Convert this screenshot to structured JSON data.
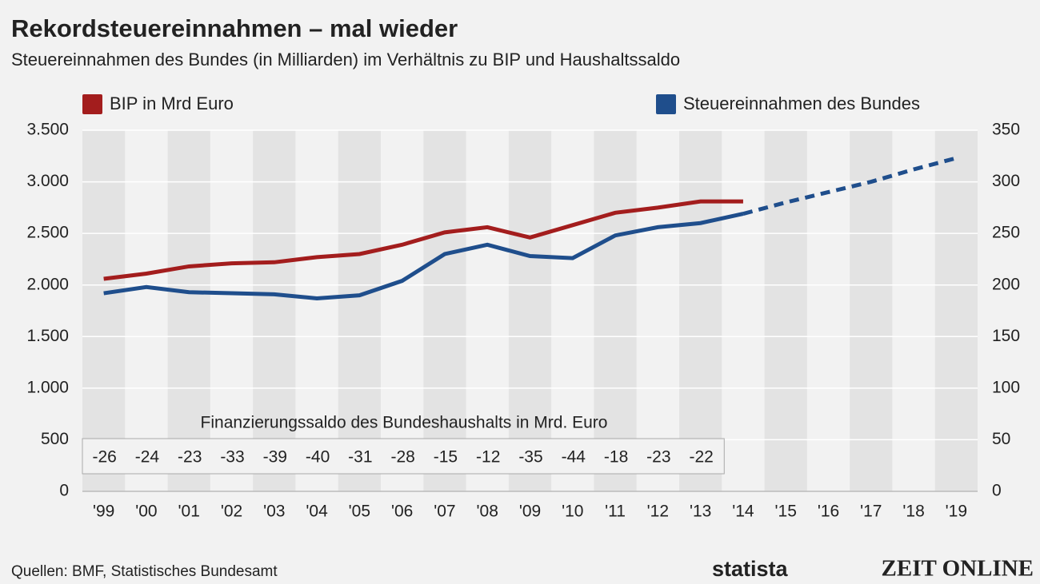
{
  "chart_data": {
    "type": "line",
    "title": "Rekordsteuereinnahmen – mal wieder",
    "subtitle": "Steuereinnahmen des Bundes (in Milliarden) im Verhältnis zu BIP und Haushaltssaldo",
    "categories": [
      "'99",
      "'00",
      "'01",
      "'02",
      "'03",
      "'04",
      "'05",
      "'06",
      "'07",
      "'08",
      "'09",
      "'10",
      "'11",
      "'12",
      "'13",
      "'14",
      "'15",
      "'16",
      "'17",
      "'18",
      "'19"
    ],
    "series": [
      {
        "name": "BIP in Mrd Euro",
        "color": "#a31d1d",
        "values": [
          2060,
          2110,
          2180,
          2210,
          2220,
          2270,
          2300,
          2390,
          2510,
          2560,
          2460,
          2580,
          2700,
          2750,
          2810,
          2810,
          null,
          null,
          null,
          null,
          null
        ]
      },
      {
        "name": "Steuereinnahmen des Bundes",
        "color": "#1f4e8c",
        "axis": "y2",
        "values": [
          192,
          198,
          193,
          192,
          191,
          187,
          190,
          204,
          230,
          239,
          228,
          226,
          248,
          256,
          260,
          269,
          280,
          290,
          300,
          312,
          323
        ]
      }
    ],
    "forecast_from": "'14",
    "ylim": [
      0,
      3500
    ],
    "yticks": [
      0,
      500,
      {
        "value": 1000,
        "label": "1.000"
      },
      {
        "value": 1500,
        "label": "1.500"
      },
      {
        "value": 2000,
        "label": "2.000"
      },
      {
        "value": 2500,
        "label": "2.500"
      },
      {
        "value": 3000,
        "label": "3.000"
      },
      {
        "value": 3500,
        "label": "3.500"
      }
    ],
    "y2lim": [
      0,
      350
    ],
    "y2ticks": [
      0,
      50,
      100,
      150,
      200,
      250,
      300,
      350
    ],
    "grid": true,
    "balance_table": {
      "title": "Finanzierungssaldo des Bundeshaushalts in Mrd. Euro",
      "values": [
        -26,
        -24,
        -23,
        -33,
        -39,
        -40,
        -31,
        -28,
        -15,
        -12,
        -35,
        -44,
        -18,
        -23,
        -22
      ]
    },
    "source": "Quellen: BMF, Statistisches Bundesamt",
    "logos": [
      "statista",
      "ZEIT ONLINE"
    ]
  }
}
